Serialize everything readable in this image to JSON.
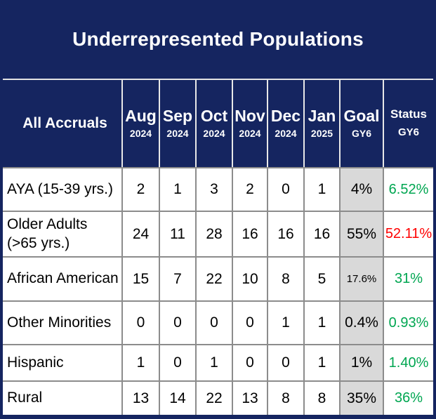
{
  "title": "Underrepresented Populations",
  "colors": {
    "navy": "#152560",
    "green": "#00a651",
    "red": "#ff0000",
    "goal_bg": "#d9d9d9",
    "grid": "#8c8c8c"
  },
  "table": {
    "corner_header": "All Accruals",
    "month_columns": [
      {
        "label": "Aug",
        "sub": "2024"
      },
      {
        "label": "Sep",
        "sub": "2024"
      },
      {
        "label": "Oct",
        "sub": "2024"
      },
      {
        "label": "Nov",
        "sub": "2024"
      },
      {
        "label": "Dec",
        "sub": "2024"
      },
      {
        "label": "Jan",
        "sub": "2025"
      }
    ],
    "goal_column": {
      "label": "Goal",
      "sub": "GY6"
    },
    "status_column": {
      "label": "Status",
      "sub": "GY6"
    },
    "rows": [
      {
        "label": "AYA (15-39 yrs.)",
        "values": [
          "2",
          "1",
          "3",
          "2",
          "0",
          "1"
        ],
        "goal": "4%",
        "status": "6.52%",
        "status_color": "#00a651"
      },
      {
        "label": "Older Adults (>65 yrs.)",
        "values": [
          "24",
          "11",
          "28",
          "16",
          "16",
          "16"
        ],
        "goal": "55%",
        "status": "52.11%",
        "status_color": "#ff0000"
      },
      {
        "label": "African American",
        "values": [
          "15",
          "7",
          "22",
          "10",
          "8",
          "5"
        ],
        "goal": "17.6%",
        "status": "31%",
        "status_color": "#00a651"
      },
      {
        "label": "Other Minorities",
        "values": [
          "0",
          "0",
          "0",
          "0",
          "1",
          "1"
        ],
        "goal": "0.4%",
        "status": "0.93%",
        "status_color": "#00a651"
      },
      {
        "label": "Hispanic",
        "values": [
          "1",
          "0",
          "1",
          "0",
          "0",
          "1"
        ],
        "goal": "1%",
        "status": "1.40%",
        "status_color": "#00a651"
      },
      {
        "label": "Rural",
        "values": [
          "13",
          "14",
          "22",
          "13",
          "8",
          "8"
        ],
        "goal": "35%",
        "status": "36%",
        "status_color": "#00a651"
      }
    ]
  },
  "chart_data": {
    "type": "table",
    "title": "Underrepresented Populations",
    "columns": [
      "All Accruals",
      "Aug 2024",
      "Sep 2024",
      "Oct 2024",
      "Nov 2024",
      "Dec 2024",
      "Jan 2025",
      "Goal GY6",
      "Status GY6"
    ],
    "rows": [
      [
        "AYA (15-39 yrs.)",
        2,
        1,
        3,
        2,
        0,
        1,
        "4%",
        "6.52%"
      ],
      [
        "Older Adults (>65 yrs.)",
        24,
        11,
        28,
        16,
        16,
        16,
        "55%",
        "52.11%"
      ],
      [
        "African American",
        15,
        7,
        22,
        10,
        8,
        5,
        "17.6%",
        "31%"
      ],
      [
        "Other Minorities",
        0,
        0,
        0,
        0,
        1,
        1,
        "0.4%",
        "0.93%"
      ],
      [
        "Hispanic",
        1,
        0,
        1,
        0,
        0,
        1,
        "1%",
        "1.40%"
      ],
      [
        "Rural",
        13,
        14,
        22,
        13,
        8,
        8,
        "35%",
        "36%"
      ]
    ],
    "status_semantics": [
      "above-goal-green",
      "below-goal-red",
      "above-goal-green",
      "above-goal-green",
      "above-goal-green",
      "above-goal-green"
    ]
  }
}
